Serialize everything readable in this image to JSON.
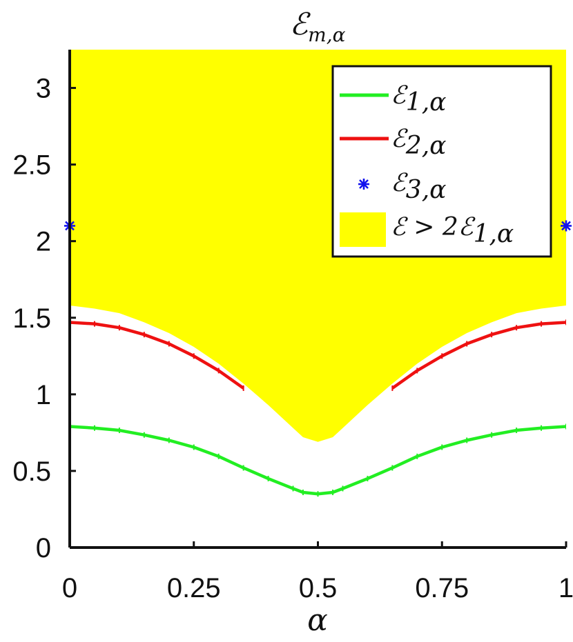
{
  "chart_data": {
    "type": "line",
    "title": "ℰm,α",
    "title_parts": {
      "main": "ℰ",
      "sub": "m,α"
    },
    "xlabel": "α",
    "ylabel": "",
    "xlim": [
      0,
      1
    ],
    "ylim": [
      0,
      3.25
    ],
    "xticks": [
      0,
      0.25,
      0.5,
      0.75,
      1
    ],
    "xtick_labels": [
      "0",
      "0.25",
      "0.5",
      "0.75",
      "1"
    ],
    "yticks": [
      0,
      0.5,
      1,
      1.5,
      2,
      2.5,
      3
    ],
    "ytick_labels": [
      "0",
      "0.5",
      "1",
      "1.5",
      "2",
      "2.5",
      "3"
    ],
    "grid": false,
    "legend_position": "top-right",
    "colors": {
      "series1": "#22ee22",
      "series2": "#ee1111",
      "series3": "#1111ee",
      "region": "#ffff00",
      "axis": "#111111"
    },
    "series": [
      {
        "name": "ℰ1,α",
        "legend": {
          "main": "ℰ",
          "sub": "1,α"
        },
        "kind": "line",
        "x": [
          0,
          0.05,
          0.1,
          0.15,
          0.2,
          0.25,
          0.3,
          0.35,
          0.4,
          0.45,
          0.47,
          0.5,
          0.53,
          0.55,
          0.6,
          0.65,
          0.7,
          0.75,
          0.8,
          0.85,
          0.9,
          0.95,
          1
        ],
        "y": [
          0.79,
          0.78,
          0.765,
          0.735,
          0.7,
          0.655,
          0.595,
          0.52,
          0.45,
          0.385,
          0.36,
          0.35,
          0.36,
          0.385,
          0.45,
          0.52,
          0.595,
          0.655,
          0.7,
          0.735,
          0.765,
          0.78,
          0.79
        ]
      },
      {
        "name": "ℰ2,α",
        "legend": {
          "main": "ℰ",
          "sub": "2,α"
        },
        "kind": "line",
        "segments": [
          {
            "x": [
              0,
              0.05,
              0.1,
              0.15,
              0.2,
              0.25,
              0.3,
              0.35
            ],
            "y": [
              1.47,
              1.46,
              1.435,
              1.39,
              1.33,
              1.25,
              1.155,
              1.04
            ]
          },
          {
            "x": [
              0.65,
              0.7,
              0.75,
              0.8,
              0.85,
              0.9,
              0.95,
              1
            ],
            "y": [
              1.04,
              1.155,
              1.25,
              1.33,
              1.39,
              1.435,
              1.46,
              1.47
            ]
          }
        ]
      },
      {
        "name": "ℰ3,α",
        "legend": {
          "main": "ℰ",
          "sub": "3,α"
        },
        "kind": "scatter",
        "x": [
          0,
          1
        ],
        "y": [
          2.1,
          2.1
        ]
      }
    ],
    "region": {
      "name": "ℰ > 2ℰ1,α",
      "legend": {
        "prefix": "ℰ > 2ℰ",
        "sub": "1,α"
      },
      "kind": "area",
      "upper": 3.25,
      "x": [
        0,
        0.05,
        0.1,
        0.15,
        0.2,
        0.25,
        0.3,
        0.35,
        0.4,
        0.45,
        0.47,
        0.5,
        0.53,
        0.55,
        0.6,
        0.65,
        0.7,
        0.75,
        0.8,
        0.85,
        0.9,
        0.95,
        1
      ],
      "lower": [
        1.58,
        1.56,
        1.53,
        1.47,
        1.4,
        1.31,
        1.2,
        1.07,
        0.93,
        0.78,
        0.72,
        0.69,
        0.72,
        0.78,
        0.93,
        1.07,
        1.2,
        1.31,
        1.4,
        1.47,
        1.53,
        1.56,
        1.58
      ]
    }
  }
}
